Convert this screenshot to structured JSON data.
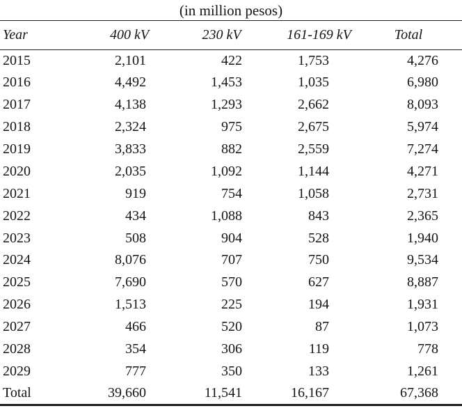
{
  "title": "(in million pesos)",
  "table": {
    "columns": [
      "Year",
      "400 kV",
      "230 kV",
      "161-169 kV",
      "Total"
    ],
    "rows": [
      [
        "2015",
        "2,101",
        "422",
        "1,753",
        "4,276"
      ],
      [
        "2016",
        "4,492",
        "1,453",
        "1,035",
        "6,980"
      ],
      [
        "2017",
        "4,138",
        "1,293",
        "2,662",
        "8,093"
      ],
      [
        "2018",
        "2,324",
        "975",
        "2,675",
        "5,974"
      ],
      [
        "2019",
        "3,833",
        "882",
        "2,559",
        "7,274"
      ],
      [
        "2020",
        "2,035",
        "1,092",
        "1,144",
        "4,271"
      ],
      [
        "2021",
        "919",
        "754",
        "1,058",
        "2,731"
      ],
      [
        "2022",
        "434",
        "1,088",
        "843",
        "2,365"
      ],
      [
        "2023",
        "508",
        "904",
        "528",
        "1,940"
      ],
      [
        "2024",
        "8,076",
        "707",
        "750",
        "9,534"
      ],
      [
        "2025",
        "7,690",
        "570",
        "627",
        "8,887"
      ],
      [
        "2026",
        "1,513",
        "225",
        "194",
        "1,931"
      ],
      [
        "2027",
        "466",
        "520",
        "87",
        "1,073"
      ],
      [
        "2028",
        "354",
        "306",
        "119",
        "778"
      ],
      [
        "2029",
        "777",
        "350",
        "133",
        "1,261"
      ]
    ],
    "total_row": [
      "Total",
      "39,660",
      "11,541",
      "16,167",
      "67,368"
    ]
  },
  "colors": {
    "text": "#141414",
    "rule": "#1f1f1f",
    "background": "#ffffff"
  }
}
